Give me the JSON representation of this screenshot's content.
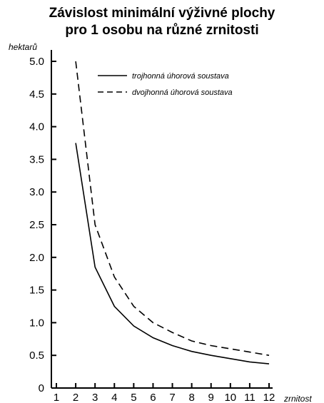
{
  "chart_data": {
    "type": "line",
    "title_lines": [
      "Závislost minimální výživné plochy",
      "pro 1 osobu na různé zrnitosti"
    ],
    "xlabel": "zrnitost",
    "ylabel": "hektarů",
    "xlim": [
      1,
      12
    ],
    "ylim": [
      0,
      5.0
    ],
    "x_ticks": [
      "1",
      "2",
      "3",
      "4",
      "5",
      "6",
      "7",
      "8",
      "9",
      "10",
      "11",
      "12"
    ],
    "y_ticks": [
      "0",
      "0.5",
      "1.0",
      "1.5",
      "2.0",
      "2.5",
      "3.0",
      "3.5",
      "4.0",
      "4.5",
      "5.0"
    ],
    "grid": false,
    "legend_position": "top-right",
    "series": [
      {
        "name": "trojhonná úhorová soustava",
        "style": "solid",
        "x": [
          2,
          3,
          4,
          5,
          6,
          7,
          8,
          9,
          10,
          11,
          12
        ],
        "y": [
          3.75,
          1.85,
          1.25,
          0.95,
          0.77,
          0.65,
          0.56,
          0.5,
          0.45,
          0.4,
          0.37
        ]
      },
      {
        "name": "dvojhonná úhorová soustava",
        "style": "dashed",
        "x": [
          2,
          3,
          4,
          5,
          6,
          7,
          8,
          9,
          10,
          11,
          12
        ],
        "y": [
          5.0,
          2.5,
          1.7,
          1.25,
          1.0,
          0.85,
          0.72,
          0.65,
          0.6,
          0.55,
          0.5
        ]
      }
    ]
  }
}
